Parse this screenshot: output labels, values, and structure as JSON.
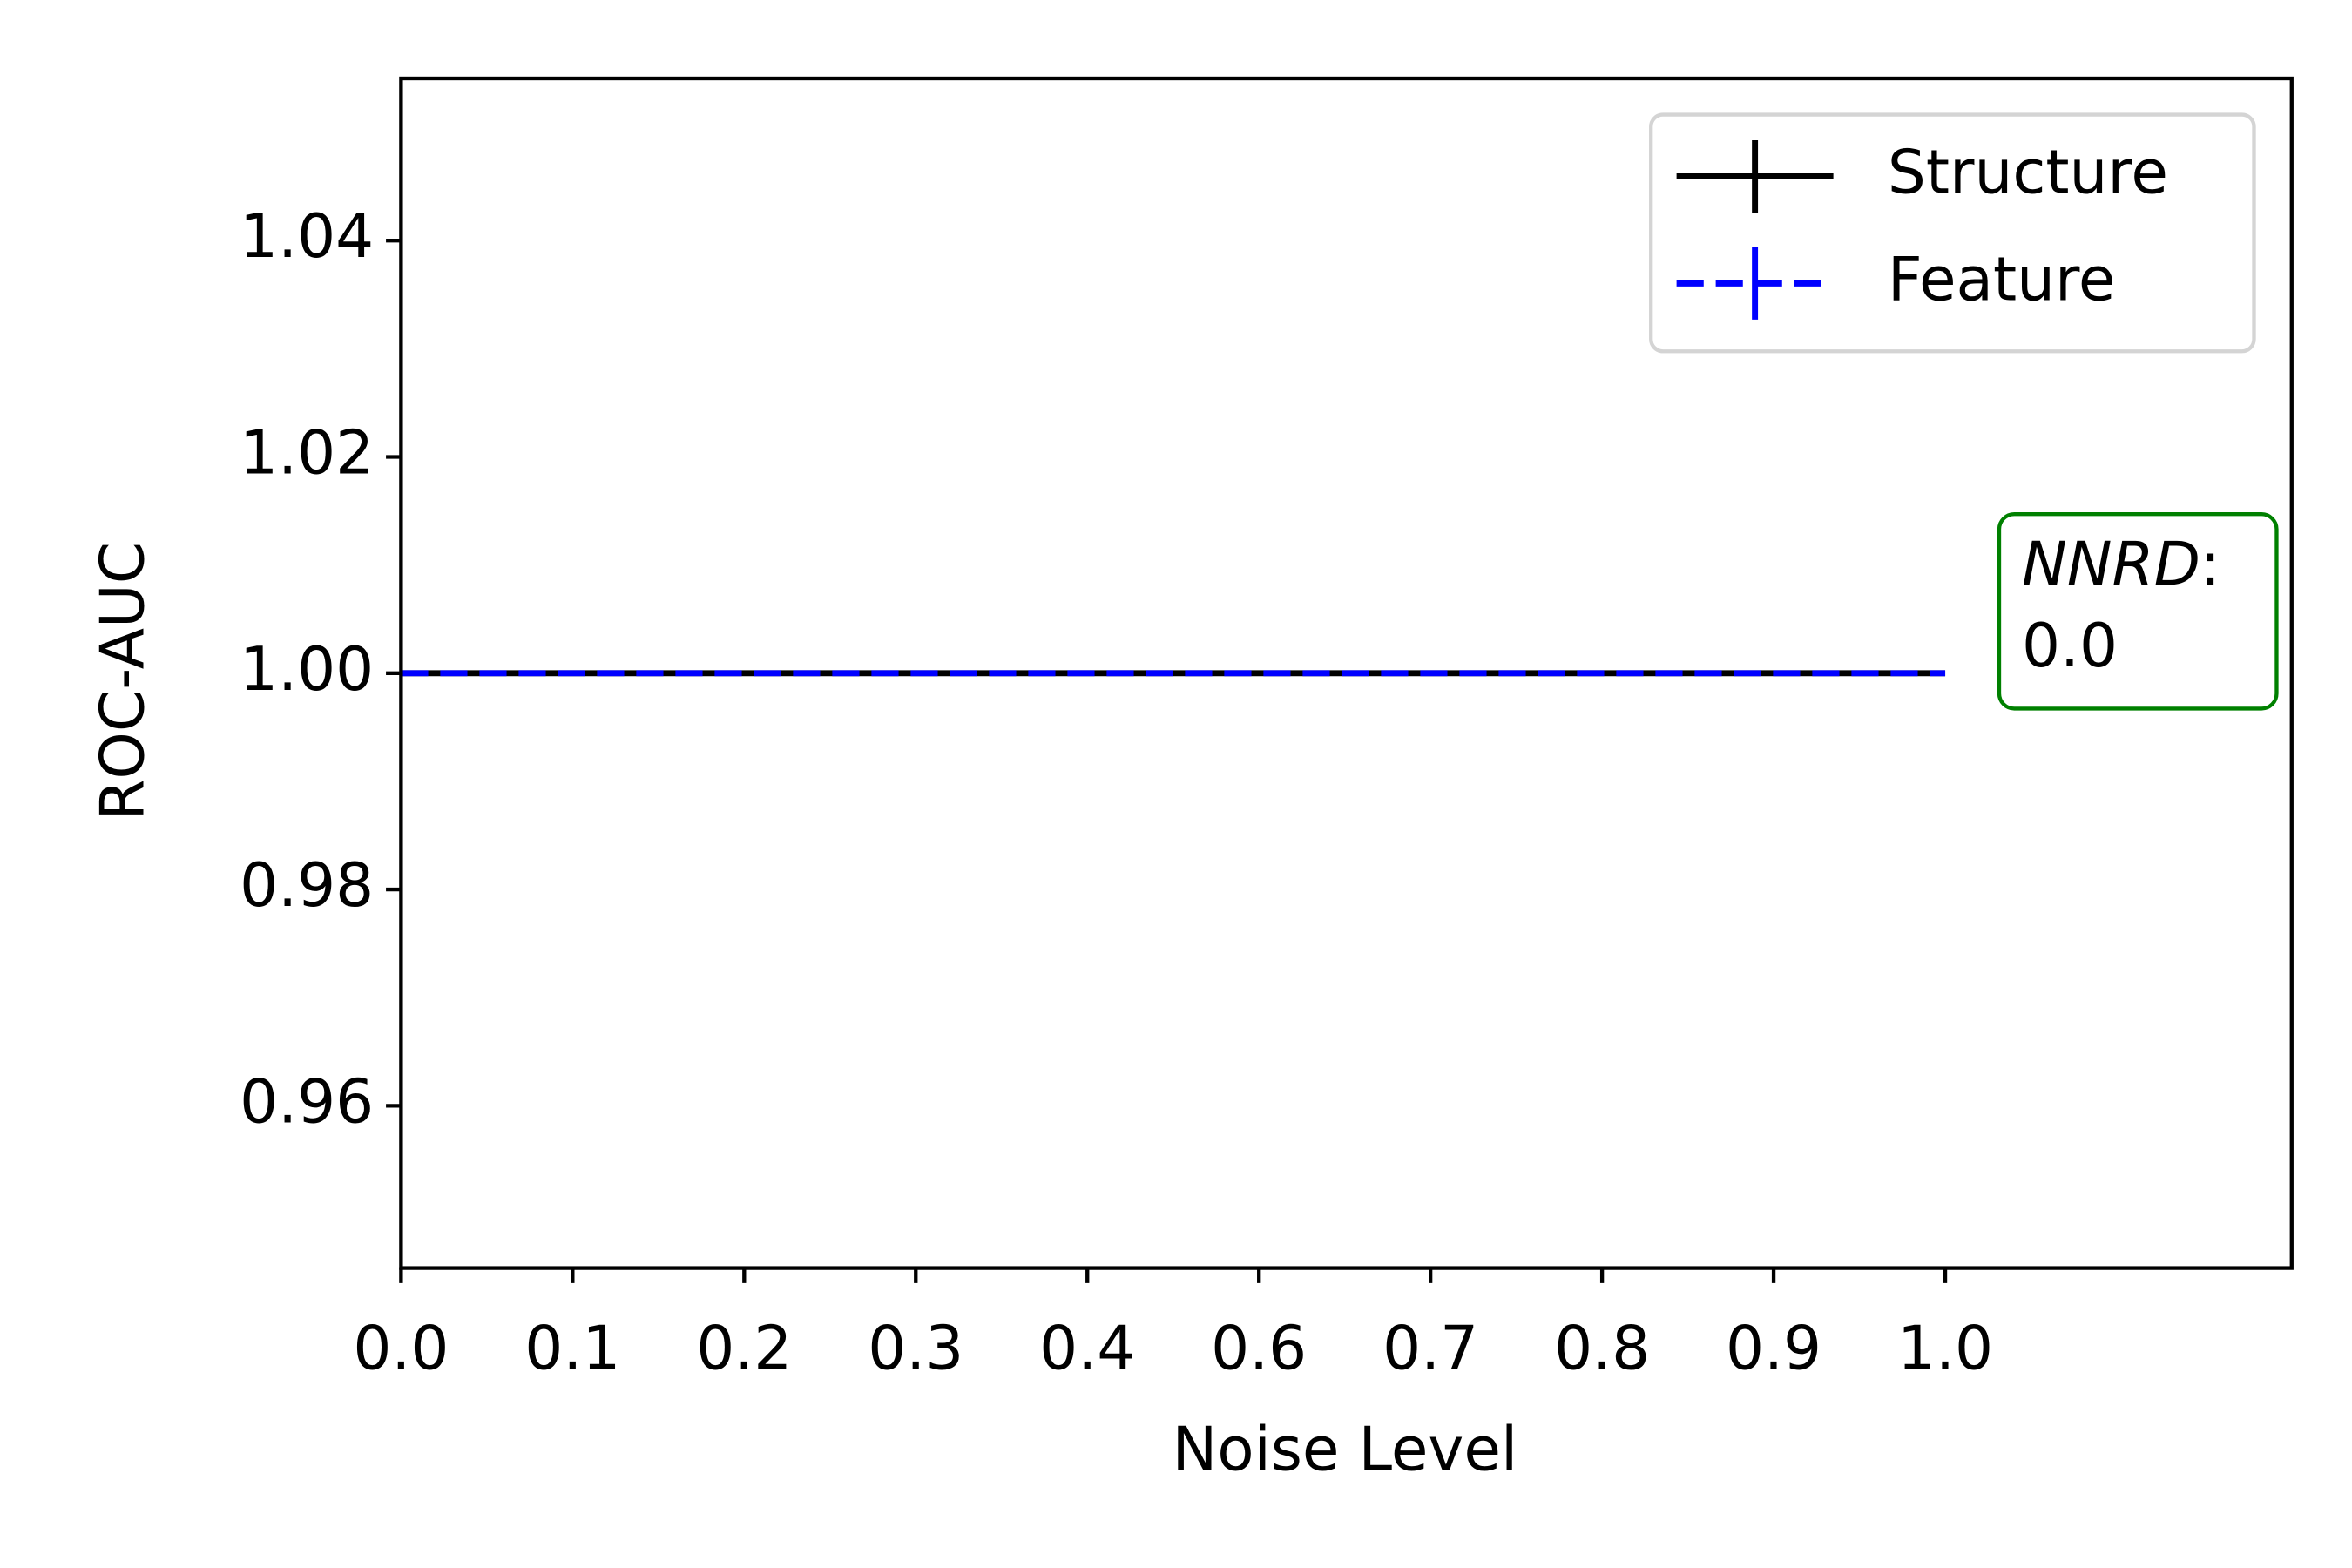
{
  "chart_data": {
    "type": "line",
    "x_label": "Noise Level",
    "y_label": "ROC-AUC",
    "categories": [
      "0.0",
      "0.1",
      "0.2",
      "0.3",
      "0.4",
      "0.6",
      "0.7",
      "0.8",
      "0.9",
      "1.0"
    ],
    "series": [
      {
        "name": "Structure",
        "color": "#000000",
        "dash": "solid",
        "values": [
          1,
          1,
          1,
          1,
          1,
          1,
          1,
          1,
          1,
          1
        ]
      },
      {
        "name": "Feature",
        "color": "#0000ff",
        "dash": "dashed",
        "values": [
          1,
          1,
          1,
          1,
          1,
          1,
          1,
          1,
          1,
          1
        ]
      }
    ],
    "ylim": [
      0.945,
      1.055
    ],
    "yticks": [
      0.96,
      0.98,
      {
        "value": 1,
        "label": "1.00"
      },
      1.02,
      1.04
    ],
    "grid": false,
    "legend": "upper right",
    "annotation": {
      "name": "NNRD",
      "separator": ":",
      "value": "0.0",
      "color": "#008000"
    }
  }
}
